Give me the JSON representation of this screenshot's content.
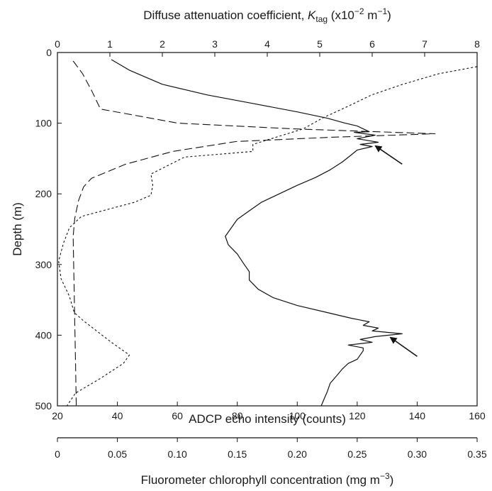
{
  "chart_data": {
    "type": "line",
    "title": "",
    "axes": {
      "depth": {
        "label": "Depth (m)",
        "range": [
          0,
          500
        ],
        "inverted": true,
        "ticks": [
          0,
          100,
          200,
          300,
          400,
          500
        ]
      },
      "echo": {
        "label": "ADCP echo intensity (counts)",
        "range": [
          20,
          160
        ],
        "ticks": [
          20,
          40,
          60,
          80,
          100,
          120,
          140,
          160
        ]
      },
      "attenuation": {
        "label_prefix": "Diffuse attenuation coefficient, ",
        "label_symbol": "K",
        "label_subscript": "tag",
        "label_unit_open": " (x10",
        "label_exp1": "−2",
        "label_unit_mid": " m",
        "label_exp2": "−1",
        "label_unit_close": ")",
        "range": [
          0,
          8
        ],
        "ticks": [
          0,
          1,
          2,
          3,
          4,
          5,
          6,
          7,
          8
        ]
      },
      "chlorophyll": {
        "label_prefix": "Fluorometer chlorophyll concentration (mg m",
        "label_exp": "−3",
        "label_suffix": ")",
        "range": [
          0,
          0.35
        ],
        "ticks": [
          0,
          0.05,
          0.1,
          0.15,
          0.2,
          0.25,
          0.3,
          0.35
        ],
        "tick_labels": [
          "0",
          "0.05",
          "0.10",
          "0.15",
          "0.20",
          "0.25",
          "0.30",
          "0.35"
        ]
      }
    },
    "series": [
      {
        "style": "solid",
        "x_axis": "echo",
        "points": [
          [
            38,
            10
          ],
          [
            44,
            25
          ],
          [
            55,
            45
          ],
          [
            70,
            60
          ],
          [
            85,
            72
          ],
          [
            100,
            84
          ],
          [
            110,
            93
          ],
          [
            116,
            100
          ],
          [
            120,
            104
          ],
          [
            124,
            112
          ],
          [
            119,
            113
          ],
          [
            126,
            117
          ],
          [
            120,
            122
          ],
          [
            127,
            127
          ],
          [
            121,
            130
          ],
          [
            125,
            133
          ],
          [
            120,
            138
          ],
          [
            118,
            145
          ],
          [
            115,
            155
          ],
          [
            111,
            166
          ],
          [
            106,
            177
          ],
          [
            100,
            188
          ],
          [
            94,
            200
          ],
          [
            88,
            212
          ],
          [
            84,
            224
          ],
          [
            80,
            236
          ],
          [
            78,
            248
          ],
          [
            76,
            260
          ],
          [
            77,
            272
          ],
          [
            80,
            285
          ],
          [
            82,
            298
          ],
          [
            84,
            310
          ],
          [
            84,
            322
          ],
          [
            87,
            335
          ],
          [
            92,
            347
          ],
          [
            100,
            358
          ],
          [
            110,
            368
          ],
          [
            118,
            376
          ],
          [
            124,
            381
          ],
          [
            122,
            386
          ],
          [
            127,
            390
          ],
          [
            125,
            394
          ],
          [
            135,
            398
          ],
          [
            126,
            402
          ],
          [
            121,
            406
          ],
          [
            125,
            410
          ],
          [
            117,
            414
          ],
          [
            122,
            418
          ],
          [
            122,
            422
          ],
          [
            121,
            428
          ],
          [
            120,
            434
          ],
          [
            117,
            440
          ],
          [
            115,
            448
          ],
          [
            113,
            458
          ],
          [
            111,
            468
          ],
          [
            110,
            480
          ],
          [
            109,
            490
          ],
          [
            108,
            500
          ]
        ]
      },
      {
        "style": "dashed",
        "x_axis": "attenuation",
        "points": [
          [
            0.3,
            12
          ],
          [
            0.48,
            30
          ],
          [
            0.66,
            55
          ],
          [
            0.82,
            80
          ],
          [
            2.3,
            100
          ],
          [
            4.5,
            108
          ],
          [
            7.2,
            115
          ],
          [
            5.2,
            120
          ],
          [
            3.4,
            126
          ],
          [
            2.2,
            140
          ],
          [
            1.3,
            158
          ],
          [
            0.65,
            178
          ],
          [
            0.5,
            190
          ],
          [
            0.4,
            210
          ],
          [
            0.33,
            235
          ],
          [
            0.3,
            260
          ],
          [
            0.31,
            300
          ],
          [
            0.32,
            340
          ],
          [
            0.33,
            380
          ],
          [
            0.34,
            420
          ],
          [
            0.35,
            460
          ],
          [
            0.36,
            500
          ]
        ]
      },
      {
        "style": "dotted",
        "x_axis": "chlorophyll",
        "points": [
          [
            0.35,
            20
          ],
          [
            0.318,
            30
          ],
          [
            0.288,
            45
          ],
          [
            0.262,
            60
          ],
          [
            0.24,
            78
          ],
          [
            0.222,
            92
          ],
          [
            0.205,
            108
          ],
          [
            0.163,
            130
          ],
          [
            0.163,
            140
          ],
          [
            0.106,
            148
          ],
          [
            0.078,
            172
          ],
          [
            0.0795,
            188
          ],
          [
            0.078,
            202
          ],
          [
            0.064,
            212
          ],
          [
            0.042,
            222
          ],
          [
            0.02,
            232
          ],
          [
            0.01,
            248
          ],
          [
            0.005,
            270
          ],
          [
            0.001,
            295
          ],
          [
            0.003,
            320
          ],
          [
            0.01,
            345
          ],
          [
            0.014,
            368
          ],
          [
            0.022,
            380
          ],
          [
            0.045,
            410
          ],
          [
            0.06,
            428
          ],
          [
            0.055,
            440
          ],
          [
            0.035,
            462
          ],
          [
            0.015,
            482
          ],
          [
            0.008,
            500
          ]
        ]
      }
    ],
    "annotations": [
      {
        "type": "arrow",
        "target_echo": 126,
        "target_depth": 132,
        "tail_echo": 135,
        "tail_depth": 158
      },
      {
        "type": "arrow",
        "target_echo": 131,
        "target_depth": 403,
        "tail_echo": 140,
        "tail_depth": 430
      }
    ]
  }
}
